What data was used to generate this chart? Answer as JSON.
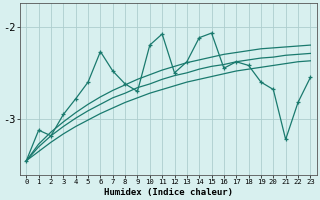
{
  "xlabel": "Humidex (Indice chaleur)",
  "x": [
    0,
    1,
    2,
    3,
    4,
    5,
    6,
    7,
    8,
    9,
    10,
    11,
    12,
    13,
    14,
    15,
    16,
    17,
    18,
    19,
    20,
    21,
    22,
    23
  ],
  "line1": [
    -3.45,
    -3.12,
    -3.18,
    -2.95,
    -2.78,
    -2.6,
    -2.27,
    -2.48,
    -2.62,
    -2.7,
    -2.2,
    -2.08,
    -2.5,
    -2.38,
    -2.12,
    -2.07,
    -2.45,
    -2.38,
    -2.42,
    -2.6,
    -2.68,
    -3.22,
    -2.82,
    -2.55
  ],
  "smooth1": [
    -3.45,
    -3.27,
    -3.14,
    -3.03,
    -2.93,
    -2.84,
    -2.76,
    -2.69,
    -2.63,
    -2.57,
    -2.52,
    -2.47,
    -2.43,
    -2.39,
    -2.36,
    -2.33,
    -2.3,
    -2.28,
    -2.26,
    -2.24,
    -2.23,
    -2.22,
    -2.21,
    -2.2
  ],
  "smooth2": [
    -3.45,
    -3.3,
    -3.18,
    -3.08,
    -2.99,
    -2.91,
    -2.84,
    -2.77,
    -2.72,
    -2.66,
    -2.62,
    -2.57,
    -2.53,
    -2.5,
    -2.46,
    -2.43,
    -2.41,
    -2.38,
    -2.36,
    -2.34,
    -2.33,
    -2.31,
    -2.3,
    -2.29
  ],
  "smooth3": [
    -3.45,
    -3.35,
    -3.25,
    -3.16,
    -3.08,
    -3.01,
    -2.94,
    -2.88,
    -2.82,
    -2.77,
    -2.72,
    -2.68,
    -2.64,
    -2.6,
    -2.57,
    -2.54,
    -2.51,
    -2.48,
    -2.46,
    -2.44,
    -2.42,
    -2.4,
    -2.38,
    -2.37
  ],
  "line_color": "#1a7a6e",
  "bg_color": "#d8f0ef",
  "plot_bg": "#d8f0ef",
  "grid_color": "#aecece",
  "ylim": [
    -3.6,
    -1.75
  ],
  "yticks": [
    -3,
    -2
  ],
  "ytick_labels": [
    "-3",
    "-2"
  ],
  "xlim": [
    -0.5,
    23.5
  ],
  "marker": "+"
}
